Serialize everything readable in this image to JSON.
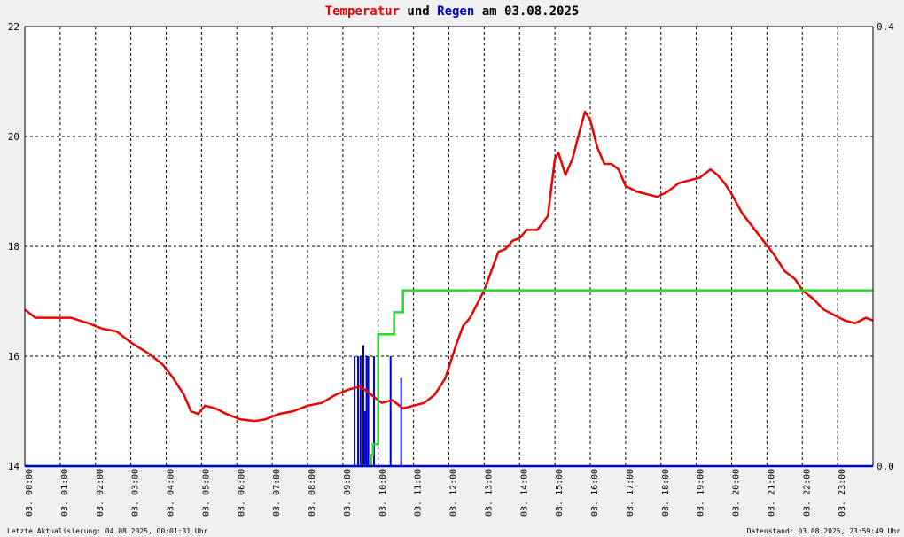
{
  "title": {
    "part1": "Temperatur",
    "part2": " und ",
    "part3": "Regen",
    "part4": " am 03.08.2025"
  },
  "footer": {
    "left": "Letzte Aktualisierung: 04.08.2025, 00:01:31 Uhr",
    "right": "Datenstand: 03.08.2025, 23:59:49 Uhr"
  },
  "colors": {
    "temperature": "#ee0000",
    "rain_cumulative": "#22dd22",
    "rain_bars": "#0000dd",
    "grid": "#000000",
    "background": "#ffffff"
  },
  "chart_data": {
    "type": "line",
    "x_unit": "hour",
    "xlim": [
      0,
      24
    ],
    "x_tick_labels": [
      "03. 00:00",
      "03. 01:00",
      "03. 02:00",
      "03. 03:00",
      "03. 04:00",
      "03. 05:00",
      "03. 06:00",
      "03. 07:00",
      "03. 08:00",
      "03. 09:00",
      "03. 10:00",
      "03. 11:00",
      "03. 12:00",
      "03. 13:00",
      "03. 14:00",
      "03. 15:00",
      "03. 16:00",
      "03. 17:00",
      "03. 18:00",
      "03. 19:00",
      "03. 20:00",
      "03. 21:00",
      "03. 22:00",
      "03. 23:00"
    ],
    "y_left": {
      "ylim": [
        14,
        22
      ],
      "ticks": [
        "14",
        "16",
        "18",
        "20",
        "22"
      ]
    },
    "y_right": {
      "ylim": [
        0,
        0.4
      ],
      "ticks": [
        "0.0",
        "0.4"
      ]
    },
    "grid": true,
    "series": [
      {
        "axis": "left",
        "type": "line",
        "x": [
          0,
          0.3,
          0.8,
          1.3,
          1.8,
          2.2,
          2.6,
          3.0,
          3.5,
          3.9,
          4.2,
          4.5,
          4.7,
          4.9,
          5.1,
          5.4,
          5.7,
          6.1,
          6.5,
          6.8,
          7.2,
          7.6,
          8.0,
          8.4,
          8.8,
          9.2,
          9.5,
          9.8,
          10.1,
          10.4,
          10.7,
          11.0,
          11.3,
          11.6,
          11.9,
          12.2,
          12.4,
          12.6,
          12.8,
          13.0,
          13.2,
          13.4,
          13.6,
          13.8,
          14.0,
          14.2,
          14.5,
          14.8,
          15.0,
          15.1,
          15.3,
          15.5,
          15.7,
          15.85,
          16.0,
          16.2,
          16.4,
          16.6,
          16.8,
          17.0,
          17.3,
          17.6,
          17.9,
          18.2,
          18.5,
          18.8,
          19.1,
          19.4,
          19.6,
          19.8,
          20.0,
          20.3,
          20.6,
          20.9,
          21.2,
          21.5,
          21.8,
          22.0,
          22.3,
          22.6,
          22.9,
          23.2,
          23.5,
          23.8,
          24.0
        ],
        "y": [
          16.85,
          16.7,
          16.7,
          16.7,
          16.6,
          16.5,
          16.45,
          16.25,
          16.05,
          15.85,
          15.6,
          15.3,
          15.0,
          14.95,
          15.1,
          15.05,
          14.95,
          14.85,
          14.82,
          14.85,
          14.95,
          15.0,
          15.1,
          15.15,
          15.3,
          15.4,
          15.45,
          15.3,
          15.15,
          15.2,
          15.05,
          15.1,
          15.15,
          15.3,
          15.6,
          16.2,
          16.55,
          16.7,
          16.95,
          17.2,
          17.55,
          17.9,
          17.95,
          18.1,
          18.15,
          18.3,
          18.3,
          18.55,
          19.6,
          19.7,
          19.3,
          19.6,
          20.1,
          20.45,
          20.3,
          19.8,
          19.5,
          19.5,
          19.4,
          19.1,
          19.0,
          18.95,
          18.9,
          19.0,
          19.15,
          19.2,
          19.25,
          19.4,
          19.3,
          19.15,
          18.95,
          18.6,
          18.35,
          18.1,
          17.85,
          17.55,
          17.4,
          17.2,
          17.05,
          16.85,
          16.75,
          16.65,
          16.6,
          16.7,
          16.65
        ]
      },
      {
        "axis": "right",
        "type": "step",
        "x": [
          0,
          9.6,
          9.7,
          9.8,
          9.85,
          10.0,
          10.35,
          10.45,
          10.65,
          10.7,
          24.0
        ],
        "y": [
          0,
          0,
          0,
          0.01,
          0.02,
          0.12,
          0.12,
          0.14,
          0.14,
          0.16,
          0.16
        ]
      },
      {
        "axis": "right",
        "type": "bar",
        "x": [
          9.33,
          9.43,
          9.5,
          9.58,
          9.62,
          9.67,
          9.72,
          9.88,
          10.35,
          10.65
        ],
        "y": [
          0.1,
          0.1,
          0.1,
          0.11,
          0.05,
          0.1,
          0.1,
          0.1,
          0.1,
          0.08
        ]
      }
    ]
  }
}
